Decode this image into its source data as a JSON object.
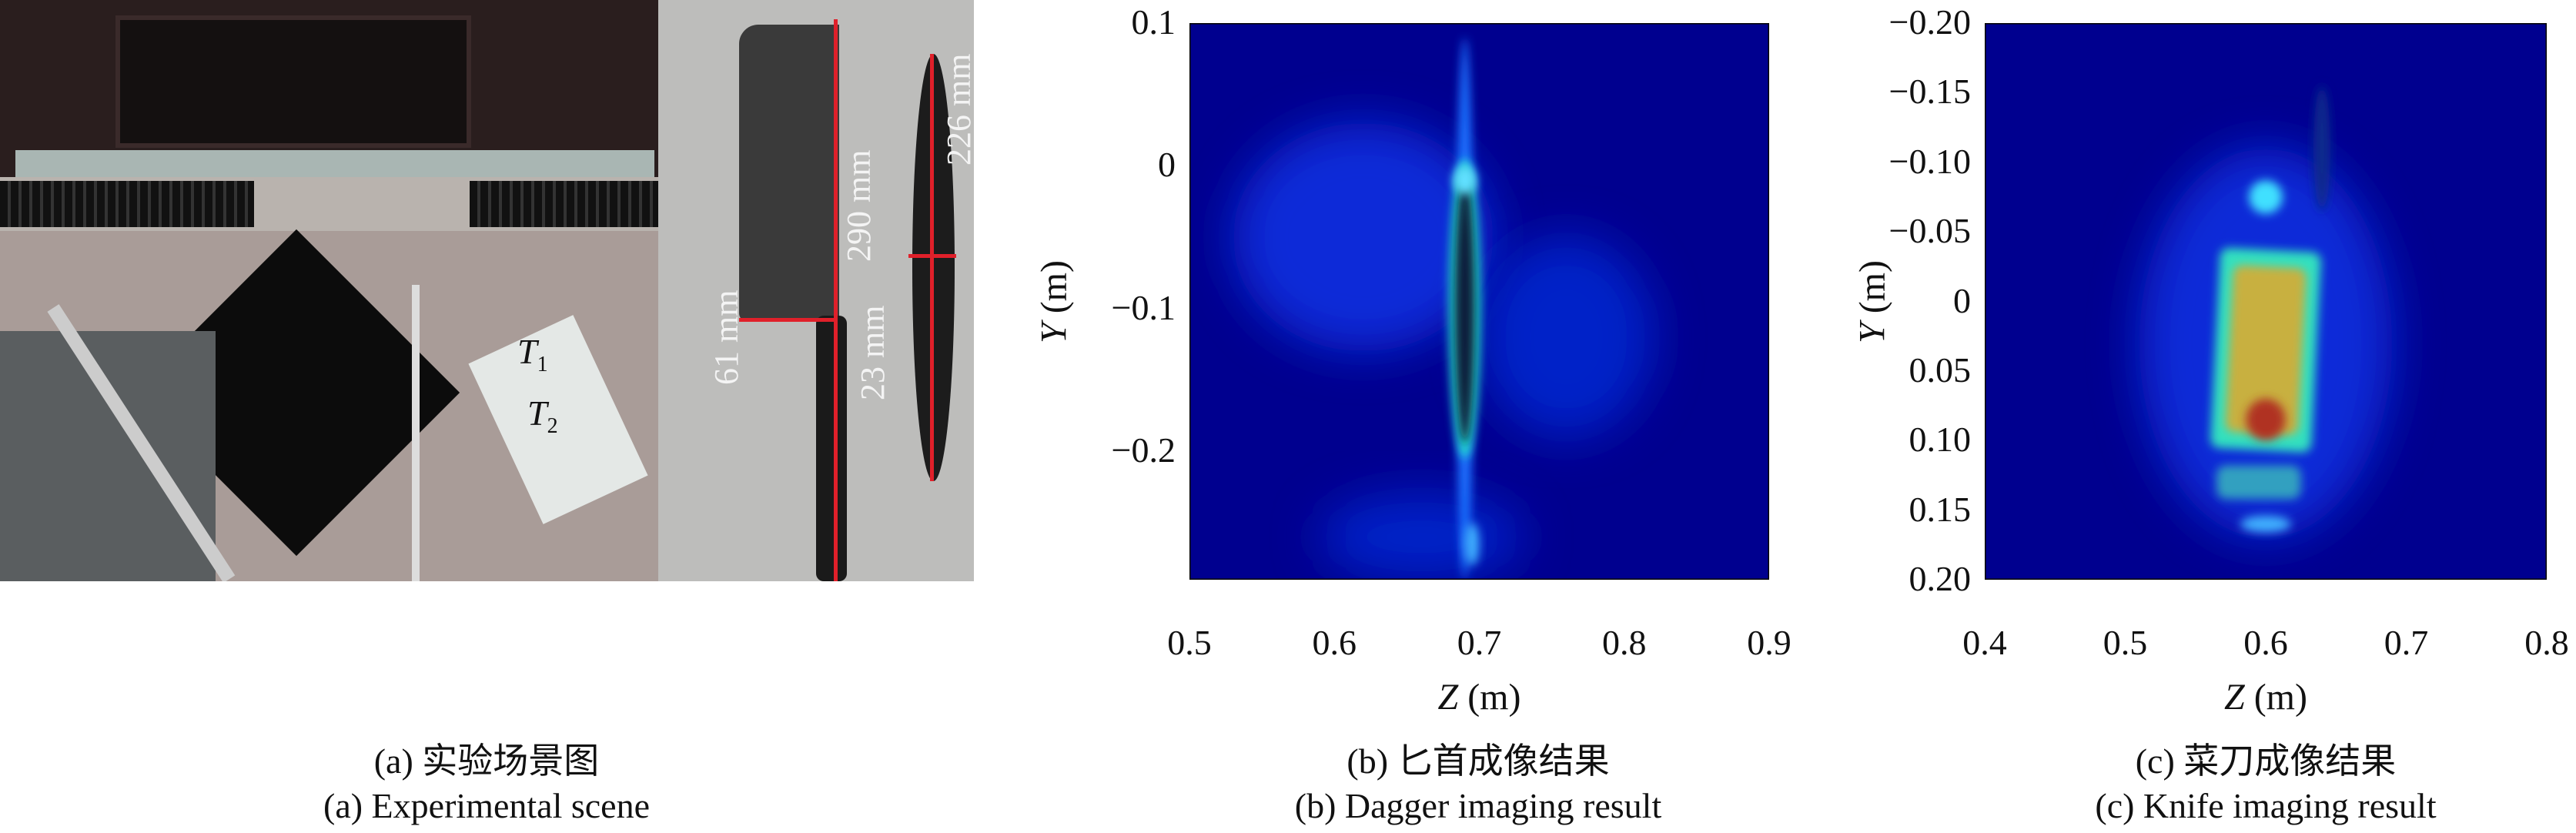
{
  "panels": {
    "a": {
      "caption_cn": "(a) 实验场景图",
      "caption_en": "(a) Experimental scene",
      "annotations": {
        "cleaver_length": "290 mm",
        "dagger_length": "226 mm",
        "dagger_width": "23 mm",
        "cleaver_width": "61 mm",
        "t1": "T",
        "t1_sub": "1",
        "t2": "T",
        "t2_sub": "2"
      }
    },
    "b": {
      "caption_cn": "(b) 匕首成像结果",
      "caption_en": "(b) Dagger imaging result"
    },
    "c": {
      "caption_cn": "(c) 菜刀成像结果",
      "caption_en": "(c) Knife imaging result"
    }
  },
  "chart_data": [
    {
      "type": "heatmap",
      "colormap": "jet",
      "xlabel_var": "Z",
      "xlabel_unit": "(m)",
      "ylabel_var": "Y",
      "ylabel_unit": "(m)",
      "xlim": [
        0.5,
        0.9
      ],
      "ylim": [
        0.1,
        -0.29
      ],
      "xticks": [
        "0.5",
        "0.6",
        "0.7",
        "0.8",
        "0.9"
      ],
      "yticks": [
        "0.1",
        "0",
        "-0.1",
        "-0.2"
      ],
      "ytick_values": [
        0.1,
        0,
        -0.1,
        -0.2
      ],
      "grid": false
    },
    {
      "type": "heatmap",
      "colormap": "jet",
      "xlabel_var": "Z",
      "xlabel_unit": "(m)",
      "ylabel_var": "Y",
      "ylabel_unit": "(m)",
      "xlim": [
        0.4,
        0.8
      ],
      "ylim": [
        -0.2,
        0.2
      ],
      "xticks": [
        "0.4",
        "0.5",
        "0.6",
        "0.7",
        "0.8"
      ],
      "yticks": [
        "-0.20",
        "-0.15",
        "-0.10",
        "-0.05",
        "0",
        "0.05",
        "0.10",
        "0.15",
        "0.20"
      ],
      "ytick_values": [
        -0.2,
        -0.15,
        -0.1,
        -0.05,
        0,
        0.05,
        0.1,
        0.15,
        0.2
      ],
      "grid": false
    }
  ]
}
